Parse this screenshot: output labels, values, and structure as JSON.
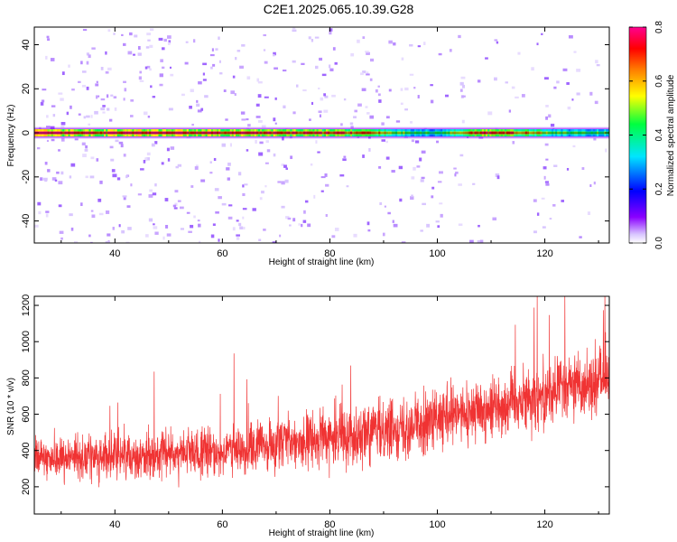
{
  "title": "C2E1.2025.065.10.39.G28",
  "colors": {
    "snr_line": "#f03333",
    "frame": "#000000",
    "colormap": [
      "#ffffff",
      "#c9a0ff",
      "#8a00ff",
      "#0000ff",
      "#00e5ff",
      "#00ff40",
      "#ffff00",
      "#ff8000",
      "#ff0000",
      "#ff0090"
    ]
  },
  "chart_data": [
    {
      "type": "heatmap",
      "xlabel": "Height of straight line (km)",
      "ylabel": "Frequency (Hz)",
      "xlim": [
        25,
        132
      ],
      "ylim": [
        -50,
        48
      ],
      "xticks": [
        40,
        60,
        80,
        100,
        120
      ],
      "yticks": [
        -40,
        -20,
        0,
        20,
        40
      ],
      "ridge": {
        "frequency": 0,
        "amplitude_by_height": [
          [
            25,
            0.8
          ],
          [
            35,
            0.75
          ],
          [
            45,
            0.8
          ],
          [
            55,
            0.78
          ],
          [
            65,
            0.75
          ],
          [
            75,
            0.72
          ],
          [
            85,
            0.68
          ],
          [
            95,
            0.45
          ],
          [
            100,
            0.4
          ],
          [
            108,
            0.75
          ],
          [
            115,
            0.65
          ],
          [
            125,
            0.42
          ],
          [
            132,
            0.45
          ]
        ]
      },
      "colorbar": {
        "label": "Normalized spectral amplitude",
        "range": [
          0,
          0.8
        ],
        "ticks": [
          "0.0",
          "0.2",
          "0.4",
          "0.6",
          "0.8"
        ]
      }
    },
    {
      "type": "line",
      "xlabel": "Height of straight line (km)",
      "ylabel": "SNR (10 * v/v)",
      "xlim": [
        25,
        132
      ],
      "ylim": [
        50,
        1250
      ],
      "xticks": [
        40,
        60,
        80,
        100,
        120
      ],
      "yticks": [
        200,
        400,
        600,
        800,
        1000,
        1200
      ],
      "trend": {
        "height": [
          25,
          40,
          60,
          80,
          100,
          110,
          120,
          132
        ],
        "mean_snr": [
          360,
          370,
          390,
          470,
          560,
          640,
          720,
          800
        ]
      }
    }
  ]
}
